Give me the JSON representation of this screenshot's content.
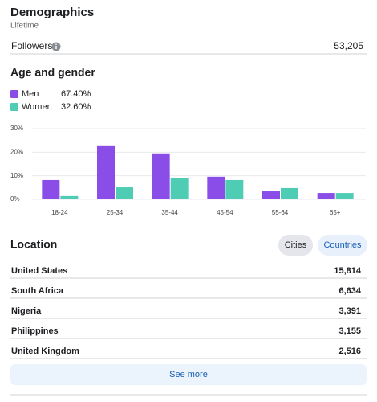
{
  "header": {
    "title": "Demographics",
    "subtitle": "Lifetime"
  },
  "followers": {
    "label": "Followers",
    "value": "53,205"
  },
  "age_gender": {
    "title": "Age and gender"
  },
  "chart_data": {
    "type": "bar",
    "categories": [
      "18-24",
      "25-34",
      "35-44",
      "45-54",
      "55-64",
      "65+"
    ],
    "series": [
      {
        "name": "Men",
        "color": "#8a4de8",
        "share_label": "67.40%",
        "values": [
          8.2,
          22.9,
          19.5,
          9.6,
          3.4,
          2.7
        ]
      },
      {
        "name": "Women",
        "color": "#4ecdb4",
        "share_label": "32.60%",
        "values": [
          1.4,
          5.1,
          9.2,
          8.2,
          4.8,
          2.7
        ]
      }
    ],
    "ylim": [
      0,
      30
    ],
    "yticks": [
      {
        "value": 0,
        "label": "0%"
      },
      {
        "value": 10,
        "label": "10%"
      },
      {
        "value": 20,
        "label": "20%"
      },
      {
        "value": 30,
        "label": "30%"
      }
    ],
    "grid": true
  },
  "location": {
    "title": "Location",
    "tabs": [
      "Cities",
      "Countries"
    ],
    "rows": [
      [
        "United States",
        "15,814"
      ],
      [
        "South Africa",
        "6,634"
      ],
      [
        "Nigeria",
        "3,391"
      ],
      [
        "Philippines",
        "3,155"
      ],
      [
        "United Kingdom",
        "2,516"
      ]
    ],
    "button": "See more"
  }
}
